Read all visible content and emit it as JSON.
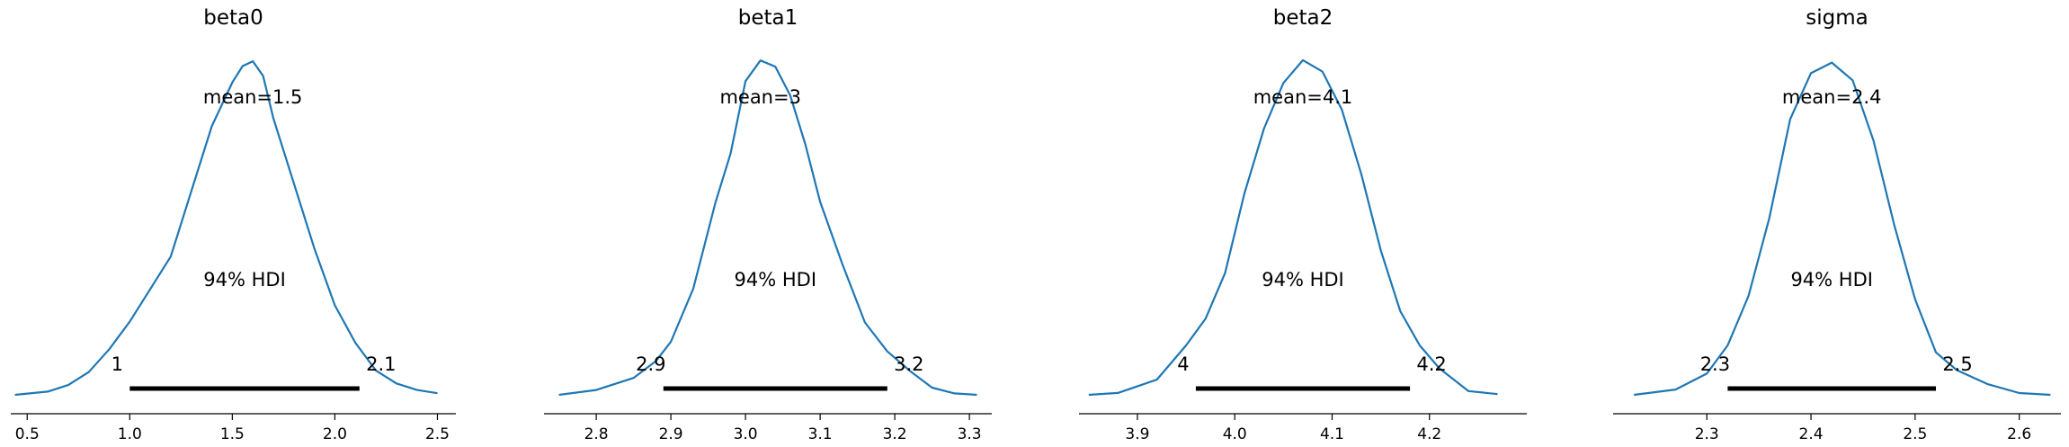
{
  "colors": {
    "kde": "#1f77b4",
    "hdi": "#000000",
    "axis": "#000000"
  },
  "chart_data": [
    {
      "type": "line",
      "title": "beta0",
      "mean_label": "mean=1.5",
      "hdi_label": "94% HDI",
      "hdi": [
        1.0,
        2.12
      ],
      "hdi_low_label": "1",
      "hdi_high_label": "2.1",
      "xlim": [
        0.42,
        2.59
      ],
      "xticks": [
        0.5,
        1.0,
        1.5,
        2.0,
        2.5
      ],
      "xtick_labels": [
        "0.5",
        "1.0",
        "1.5",
        "2.0",
        "2.5"
      ],
      "x": [
        0.44,
        0.6,
        0.7,
        0.8,
        0.9,
        1.0,
        1.1,
        1.2,
        1.3,
        1.4,
        1.5,
        1.55,
        1.6,
        1.65,
        1.7,
        1.8,
        1.9,
        2.0,
        2.1,
        2.2,
        2.3,
        2.4,
        2.5
      ],
      "y": [
        0.0,
        0.02,
        0.06,
        0.14,
        0.28,
        0.45,
        0.65,
        0.85,
        1.25,
        1.65,
        1.92,
        2.02,
        2.05,
        1.96,
        1.7,
        1.3,
        0.9,
        0.55,
        0.32,
        0.15,
        0.07,
        0.03,
        0.01
      ],
      "ylim": [
        0,
        2.15
      ]
    },
    {
      "type": "line",
      "title": "beta1",
      "mean_label": "mean=3",
      "hdi_label": "94% HDI",
      "hdi": [
        2.89,
        3.19
      ],
      "hdi_low_label": "2.9",
      "hdi_high_label": "3.2",
      "xlim": [
        2.73,
        3.33
      ],
      "xticks": [
        2.8,
        2.9,
        3.0,
        3.1,
        3.2,
        3.3
      ],
      "xtick_labels": [
        "2.8",
        "2.9",
        "3.0",
        "3.1",
        "3.2",
        "3.3"
      ],
      "x": [
        2.75,
        2.8,
        2.85,
        2.88,
        2.9,
        2.93,
        2.96,
        2.98,
        3.0,
        3.02,
        3.04,
        3.06,
        3.08,
        3.1,
        3.13,
        3.16,
        3.19,
        3.22,
        3.25,
        3.28,
        3.31
      ],
      "y": [
        0.0,
        0.1,
        0.35,
        0.7,
        1.1,
        2.2,
        4.0,
        5.0,
        6.5,
        6.93,
        6.8,
        6.2,
        5.2,
        4.0,
        2.7,
        1.5,
        0.9,
        0.5,
        0.15,
        0.03,
        0.0
      ],
      "ylim": [
        0,
        7.25
      ]
    },
    {
      "type": "line",
      "title": "beta2",
      "mean_label": "mean=4.1",
      "hdi_label": "94% HDI",
      "hdi": [
        3.96,
        4.18
      ],
      "hdi_low_label": "4",
      "hdi_high_label": "4.2",
      "xlim": [
        3.84,
        4.3
      ],
      "xticks": [
        3.9,
        4.0,
        4.1,
        4.2
      ],
      "xtick_labels": [
        "3.9",
        "4.0",
        "4.1",
        "4.2"
      ],
      "x": [
        3.85,
        3.88,
        3.92,
        3.95,
        3.97,
        3.99,
        4.01,
        4.03,
        4.05,
        4.07,
        4.09,
        4.11,
        4.13,
        4.15,
        4.17,
        4.19,
        4.21,
        4.24,
        4.27
      ],
      "y": [
        0.0,
        0.05,
        0.4,
        1.3,
        2.0,
        3.2,
        5.3,
        7.0,
        8.2,
        8.8,
        8.5,
        7.5,
        5.8,
        3.8,
        2.2,
        1.3,
        0.7,
        0.1,
        0.02
      ],
      "ylim": [
        0,
        9.2
      ]
    },
    {
      "type": "line",
      "title": "sigma",
      "mean_label": "mean=2.4",
      "hdi_label": "94% HDI",
      "hdi": [
        2.32,
        2.52
      ],
      "hdi_low_label": "2.3",
      "hdi_high_label": "2.5",
      "xlim": [
        2.21,
        2.64
      ],
      "xticks": [
        2.3,
        2.4,
        2.5,
        2.6
      ],
      "xtick_labels": [
        "2.3",
        "2.4",
        "2.5",
        "2.6"
      ],
      "x": [
        2.23,
        2.27,
        2.3,
        2.32,
        2.34,
        2.36,
        2.38,
        2.4,
        2.42,
        2.44,
        2.46,
        2.48,
        2.5,
        2.52,
        2.54,
        2.57,
        2.6,
        2.63
      ],
      "y": [
        0.0,
        0.15,
        0.6,
        1.4,
        2.8,
        5.0,
        7.8,
        9.1,
        9.4,
        8.9,
        7.2,
        4.8,
        2.7,
        1.2,
        0.7,
        0.3,
        0.05,
        0.0
      ],
      "ylim": [
        0,
        9.9
      ]
    }
  ]
}
